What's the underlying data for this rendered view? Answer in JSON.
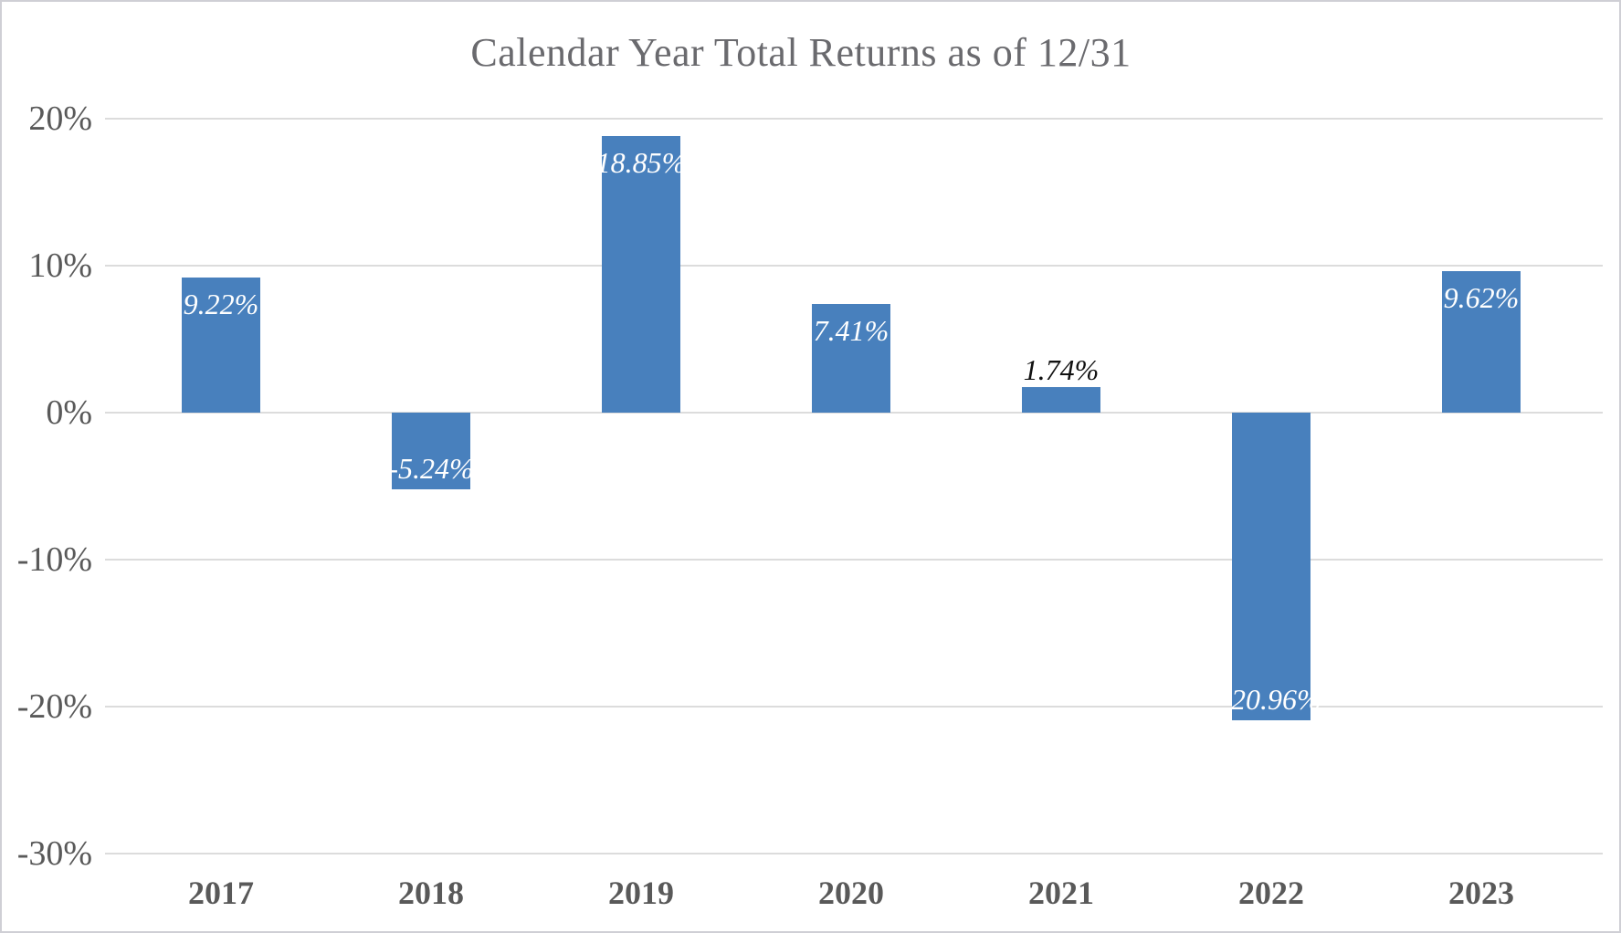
{
  "chart_data": {
    "type": "bar",
    "title": "Calendar Year Total Returns as of 12/31",
    "categories": [
      "2017",
      "2018",
      "2019",
      "2020",
      "2021",
      "2022",
      "2023"
    ],
    "values": [
      9.22,
      -5.24,
      18.85,
      7.41,
      1.74,
      -20.96,
      9.62
    ],
    "value_labels": [
      "9.22%",
      "-5.24%",
      "18.85%",
      "7.41%",
      "1.74%",
      "-20.96%",
      "9.62%"
    ],
    "xlabel": "",
    "ylabel": "",
    "ylim": [
      -30,
      20
    ],
    "yticks": [
      20,
      10,
      0,
      -10,
      -20,
      -30
    ],
    "ytick_labels": [
      "20%",
      "10%",
      "0%",
      "-10%",
      "-20%",
      "-30%"
    ],
    "grid": true,
    "legend": false,
    "bar_color": "#4880bd",
    "label_color_inside": "#ffffff",
    "label_color_outside": "#111111",
    "axis_text_color": "#595959",
    "title_color": "#6a6a6e",
    "gridline_color": "#dcdcdc"
  }
}
